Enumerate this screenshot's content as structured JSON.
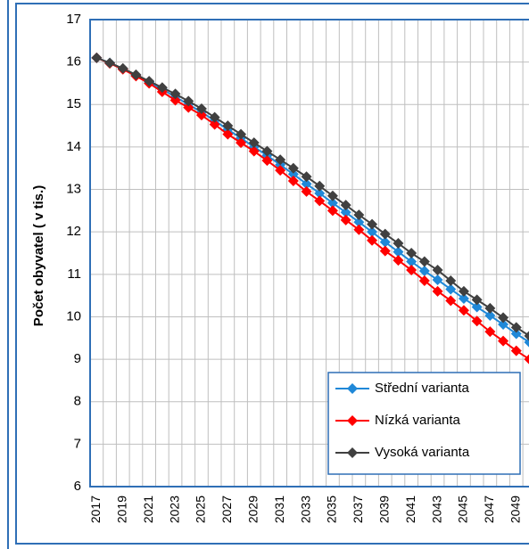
{
  "chart_data": {
    "type": "line",
    "y_label": "Počet obyvatel ( v tis.)",
    "categories": [
      "2017",
      null,
      "2019",
      null,
      "2021",
      null,
      "2023",
      null,
      "2025",
      null,
      "2027",
      null,
      "2029",
      null,
      "2031",
      null,
      "2033",
      null,
      "2035",
      null,
      "2037",
      null,
      "2039",
      null,
      "2041",
      null,
      "2043",
      null,
      "2045",
      null,
      "2047",
      null,
      "2049",
      null
    ],
    "series": [
      {
        "name": "Střední varianta",
        "color": "#1f88d8",
        "values": [
          16.1,
          15.98,
          15.84,
          15.69,
          15.53,
          15.36,
          15.18,
          15.0,
          14.82,
          14.62,
          14.41,
          14.21,
          14.0,
          13.8,
          13.58,
          13.36,
          13.13,
          12.91,
          12.68,
          12.46,
          12.23,
          12.0,
          11.76,
          11.53,
          11.3,
          11.08,
          10.87,
          10.65,
          10.43,
          10.23,
          10.03,
          9.82,
          9.6,
          9.4
        ]
      },
      {
        "name": "Nízká varianta",
        "color": "#ff0000",
        "values": [
          16.1,
          15.97,
          15.83,
          15.67,
          15.5,
          15.3,
          15.1,
          14.93,
          14.75,
          14.53,
          14.3,
          14.1,
          13.9,
          13.68,
          13.45,
          13.2,
          12.95,
          12.73,
          12.5,
          12.28,
          12.05,
          11.8,
          11.55,
          11.33,
          11.1,
          10.85,
          10.6,
          10.38,
          10.15,
          9.9,
          9.65,
          9.43,
          9.2,
          9.0
        ]
      },
      {
        "name": "Vysoká varianta",
        "color": "#404040",
        "values": [
          16.1,
          15.98,
          15.85,
          15.7,
          15.55,
          15.4,
          15.25,
          15.08,
          14.9,
          14.7,
          14.5,
          14.3,
          14.1,
          13.9,
          13.7,
          13.5,
          13.3,
          13.08,
          12.85,
          12.63,
          12.4,
          12.18,
          11.95,
          11.73,
          11.5,
          11.3,
          11.1,
          10.85,
          10.6,
          10.4,
          10.2,
          9.98,
          9.75,
          9.55
        ]
      }
    ],
    "ylim": [
      6,
      17
    ],
    "yticks": [
      6,
      7,
      8,
      9,
      10,
      11,
      12,
      13,
      14,
      15,
      16,
      17
    ],
    "grid": true,
    "legend": "lower-right"
  }
}
